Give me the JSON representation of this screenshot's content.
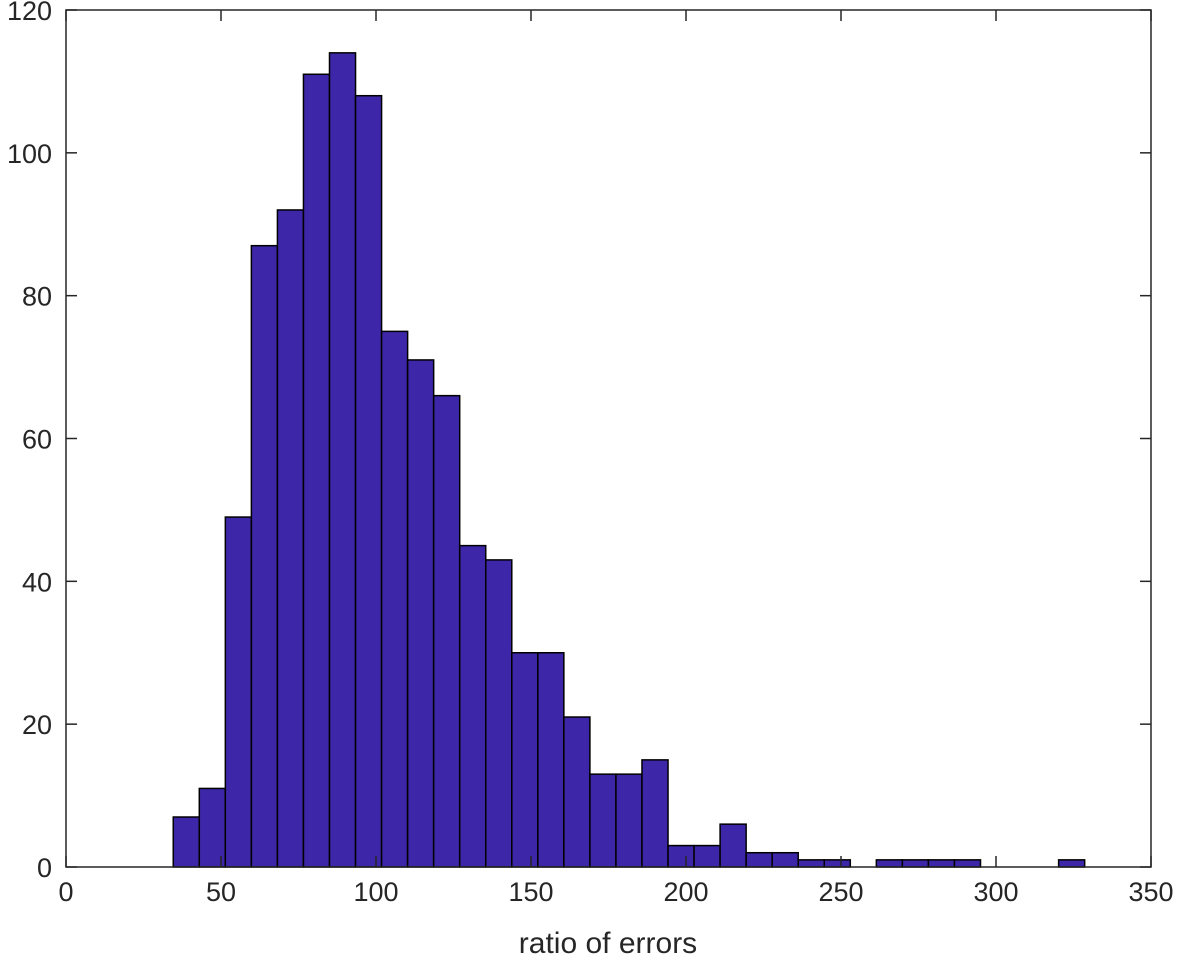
{
  "chart_data": {
    "type": "bar",
    "chart_kind": "histogram",
    "xlabel": "ratio of errors",
    "ylabel": "",
    "xlim": [
      0,
      350
    ],
    "ylim": [
      0,
      120
    ],
    "xticks": [
      0,
      50,
      100,
      150,
      200,
      250,
      300,
      350
    ],
    "yticks": [
      0,
      20,
      40,
      60,
      80,
      100,
      120
    ],
    "bin_width": 8.4,
    "bins": [
      {
        "x0": 34.6,
        "x1": 43.0,
        "value": 7
      },
      {
        "x0": 43.0,
        "x1": 51.4,
        "value": 11
      },
      {
        "x0": 51.4,
        "x1": 59.8,
        "value": 49
      },
      {
        "x0": 59.8,
        "x1": 68.2,
        "value": 87
      },
      {
        "x0": 68.2,
        "x1": 76.6,
        "value": 92
      },
      {
        "x0": 76.6,
        "x1": 85.0,
        "value": 111
      },
      {
        "x0": 85.0,
        "x1": 93.4,
        "value": 114
      },
      {
        "x0": 93.4,
        "x1": 101.8,
        "value": 108
      },
      {
        "x0": 101.8,
        "x1": 110.2,
        "value": 75
      },
      {
        "x0": 110.2,
        "x1": 118.6,
        "value": 71
      },
      {
        "x0": 118.6,
        "x1": 127.0,
        "value": 66
      },
      {
        "x0": 127.0,
        "x1": 135.4,
        "value": 45
      },
      {
        "x0": 135.4,
        "x1": 143.8,
        "value": 43
      },
      {
        "x0": 143.8,
        "x1": 152.2,
        "value": 30
      },
      {
        "x0": 152.2,
        "x1": 160.6,
        "value": 30
      },
      {
        "x0": 160.6,
        "x1": 169.0,
        "value": 21
      },
      {
        "x0": 169.0,
        "x1": 177.4,
        "value": 13
      },
      {
        "x0": 177.4,
        "x1": 185.8,
        "value": 13
      },
      {
        "x0": 185.8,
        "x1": 194.2,
        "value": 15
      },
      {
        "x0": 194.2,
        "x1": 202.6,
        "value": 3
      },
      {
        "x0": 202.6,
        "x1": 211.0,
        "value": 3
      },
      {
        "x0": 211.0,
        "x1": 219.4,
        "value": 6
      },
      {
        "x0": 219.4,
        "x1": 227.8,
        "value": 2
      },
      {
        "x0": 227.8,
        "x1": 236.2,
        "value": 2
      },
      {
        "x0": 236.2,
        "x1": 244.6,
        "value": 1
      },
      {
        "x0": 244.6,
        "x1": 253.0,
        "value": 1
      },
      {
        "x0": 253.0,
        "x1": 261.4,
        "value": 0
      },
      {
        "x0": 261.4,
        "x1": 269.8,
        "value": 1
      },
      {
        "x0": 269.8,
        "x1": 278.2,
        "value": 1
      },
      {
        "x0": 278.2,
        "x1": 286.6,
        "value": 1
      },
      {
        "x0": 286.6,
        "x1": 295.0,
        "value": 1
      },
      {
        "x0": 295.0,
        "x1": 303.4,
        "value": 0
      },
      {
        "x0": 303.4,
        "x1": 311.8,
        "value": 0
      },
      {
        "x0": 311.8,
        "x1": 320.2,
        "value": 0
      },
      {
        "x0": 320.2,
        "x1": 328.6,
        "value": 1
      }
    ],
    "bar_color": "#3d27a8",
    "bar_edge_color": "#000000",
    "grid": false,
    "legend": "none"
  }
}
